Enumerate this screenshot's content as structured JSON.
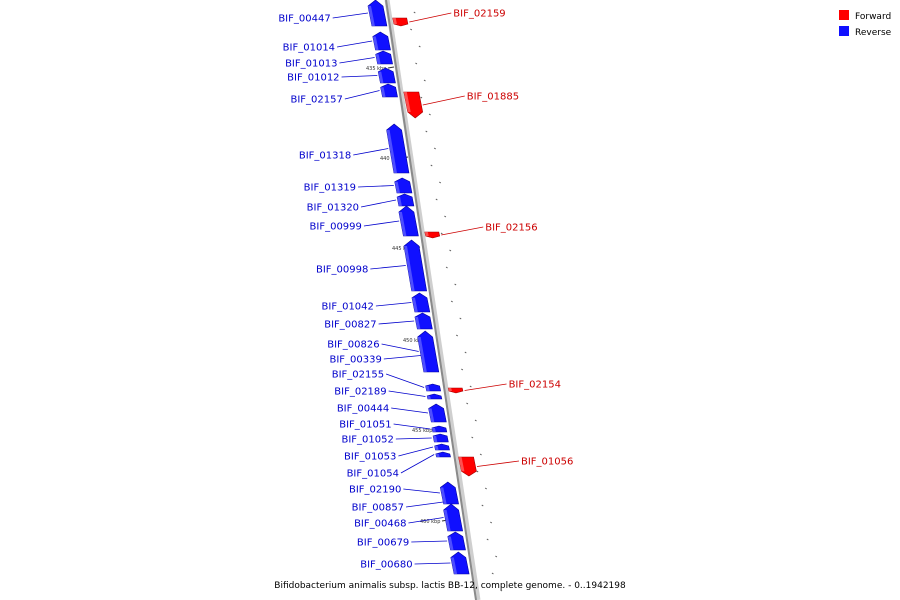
{
  "legend": {
    "forward_label": "Forward",
    "reverse_label": "Reverse",
    "forward_color": "#ff0000",
    "reverse_color": "#1010ff"
  },
  "caption": "Bifidobacterium animalis subsp. lactis BB-12, complete genome. - 0..1942198",
  "axis_color": "#8a8a8a",
  "label_color_reverse": "#0000cc",
  "label_color_forward": "#cc0000",
  "ticks": [
    "435 kbp",
    "440 kbp",
    "445 kbp",
    "450 kbp",
    "455 kbp",
    "460 kbp"
  ],
  "genes": [
    {
      "name": "BIF_00447",
      "strand": "reverse"
    },
    {
      "name": "BIF_02159",
      "strand": "forward"
    },
    {
      "name": "BIF_01014",
      "strand": "reverse"
    },
    {
      "name": "BIF_01013",
      "strand": "reverse"
    },
    {
      "name": "BIF_01012",
      "strand": "reverse"
    },
    {
      "name": "BIF_02157",
      "strand": "reverse"
    },
    {
      "name": "BIF_01885",
      "strand": "forward"
    },
    {
      "name": "BIF_01318",
      "strand": "reverse"
    },
    {
      "name": "BIF_01319",
      "strand": "reverse"
    },
    {
      "name": "BIF_01320",
      "strand": "reverse"
    },
    {
      "name": "BIF_00999",
      "strand": "reverse"
    },
    {
      "name": "BIF_02156",
      "strand": "forward"
    },
    {
      "name": "BIF_00998",
      "strand": "reverse"
    },
    {
      "name": "BIF_01042",
      "strand": "reverse"
    },
    {
      "name": "BIF_00827",
      "strand": "reverse"
    },
    {
      "name": "BIF_00826",
      "strand": "reverse"
    },
    {
      "name": "BIF_00339",
      "strand": "reverse"
    },
    {
      "name": "BIF_02155",
      "strand": "reverse"
    },
    {
      "name": "BIF_02154",
      "strand": "forward"
    },
    {
      "name": "BIF_02189",
      "strand": "reverse"
    },
    {
      "name": "BIF_00444",
      "strand": "reverse"
    },
    {
      "name": "BIF_01051",
      "strand": "reverse"
    },
    {
      "name": "BIF_01052",
      "strand": "reverse"
    },
    {
      "name": "BIF_01053",
      "strand": "reverse"
    },
    {
      "name": "BIF_01056",
      "strand": "forward"
    },
    {
      "name": "BIF_01054",
      "strand": "reverse"
    },
    {
      "name": "BIF_02190",
      "strand": "reverse"
    },
    {
      "name": "BIF_00857",
      "strand": "reverse"
    },
    {
      "name": "BIF_00468",
      "strand": "reverse"
    },
    {
      "name": "BIF_00679",
      "strand": "reverse"
    },
    {
      "name": "BIF_00680",
      "strand": "reverse"
    }
  ]
}
